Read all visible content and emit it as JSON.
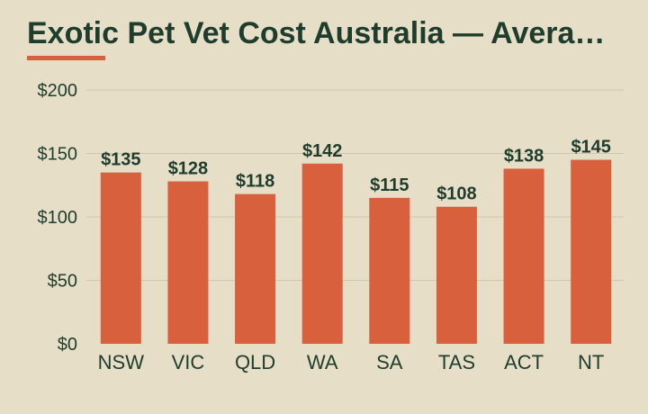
{
  "header": {
    "title": "Exotic Pet Vet Cost Australia — Avera…"
  },
  "colors": {
    "background": "#e7dec8",
    "bar": "#d9603c",
    "text": "#1f3d2c",
    "grid": "#cfc5ad"
  },
  "chart_data": {
    "type": "bar",
    "title": "Exotic Pet Vet Cost Australia — Avera…",
    "categories": [
      "NSW",
      "VIC",
      "QLD",
      "WA",
      "SA",
      "TAS",
      "ACT",
      "NT"
    ],
    "values": [
      135,
      128,
      118,
      142,
      115,
      108,
      138,
      145
    ],
    "value_labels": [
      "$135",
      "$128",
      "$118",
      "$142",
      "$115",
      "$108",
      "$138",
      "$145"
    ],
    "yticks": [
      0,
      50,
      100,
      150,
      200
    ],
    "ytick_labels": [
      "$0",
      "$50",
      "$100",
      "$150",
      "$200"
    ],
    "ylim": [
      0,
      200
    ],
    "xlabel": "",
    "ylabel": "",
    "grid": true,
    "legend": "none"
  }
}
